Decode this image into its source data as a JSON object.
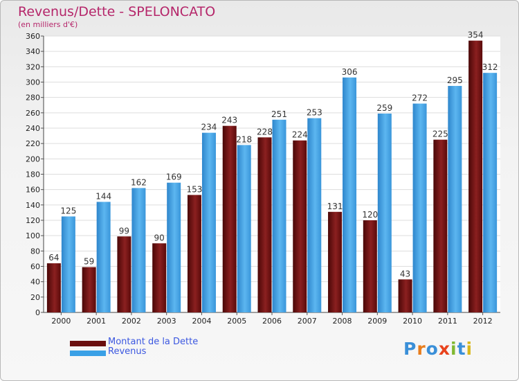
{
  "title": "Revenus/Dette - SPELONCATO",
  "subtitle": "(en milliers d'€)",
  "logo": {
    "letters": [
      "P",
      "r",
      "o",
      "x",
      "i",
      "t",
      "i"
    ],
    "colors": [
      "#3a8fd8",
      "#e87d1c",
      "#3a8fd8",
      "#e8421c",
      "#80b832",
      "#3a8fd8",
      "#d8b81c"
    ]
  },
  "colors": {
    "dette": "#6b0f0f",
    "revenus": "#3aa0e6",
    "title": "#b5266a",
    "legend_text": "#3b57e0"
  },
  "chart_data": {
    "type": "bar",
    "title": "Revenus/Dette - SPELONCATO",
    "ylabel": "(en milliers d'€)",
    "categories": [
      "2000",
      "2001",
      "2002",
      "2003",
      "2004",
      "2005",
      "2006",
      "2007",
      "2008",
      "2009",
      "2010",
      "2011",
      "2012"
    ],
    "series": [
      {
        "name": "Montant de la Dette",
        "color": "#6b0f0f",
        "values": [
          64,
          59,
          99,
          90,
          153,
          243,
          228,
          224,
          131,
          120,
          43,
          225,
          354
        ]
      },
      {
        "name": "Revenus",
        "color": "#3aa0e6",
        "values": [
          125,
          144,
          162,
          169,
          234,
          218,
          251,
          253,
          306,
          259,
          272,
          295,
          312
        ]
      }
    ],
    "ylim": [
      0,
      360
    ],
    "ytick_step": 20,
    "grid": true,
    "legend_position": "bottom-left"
  }
}
